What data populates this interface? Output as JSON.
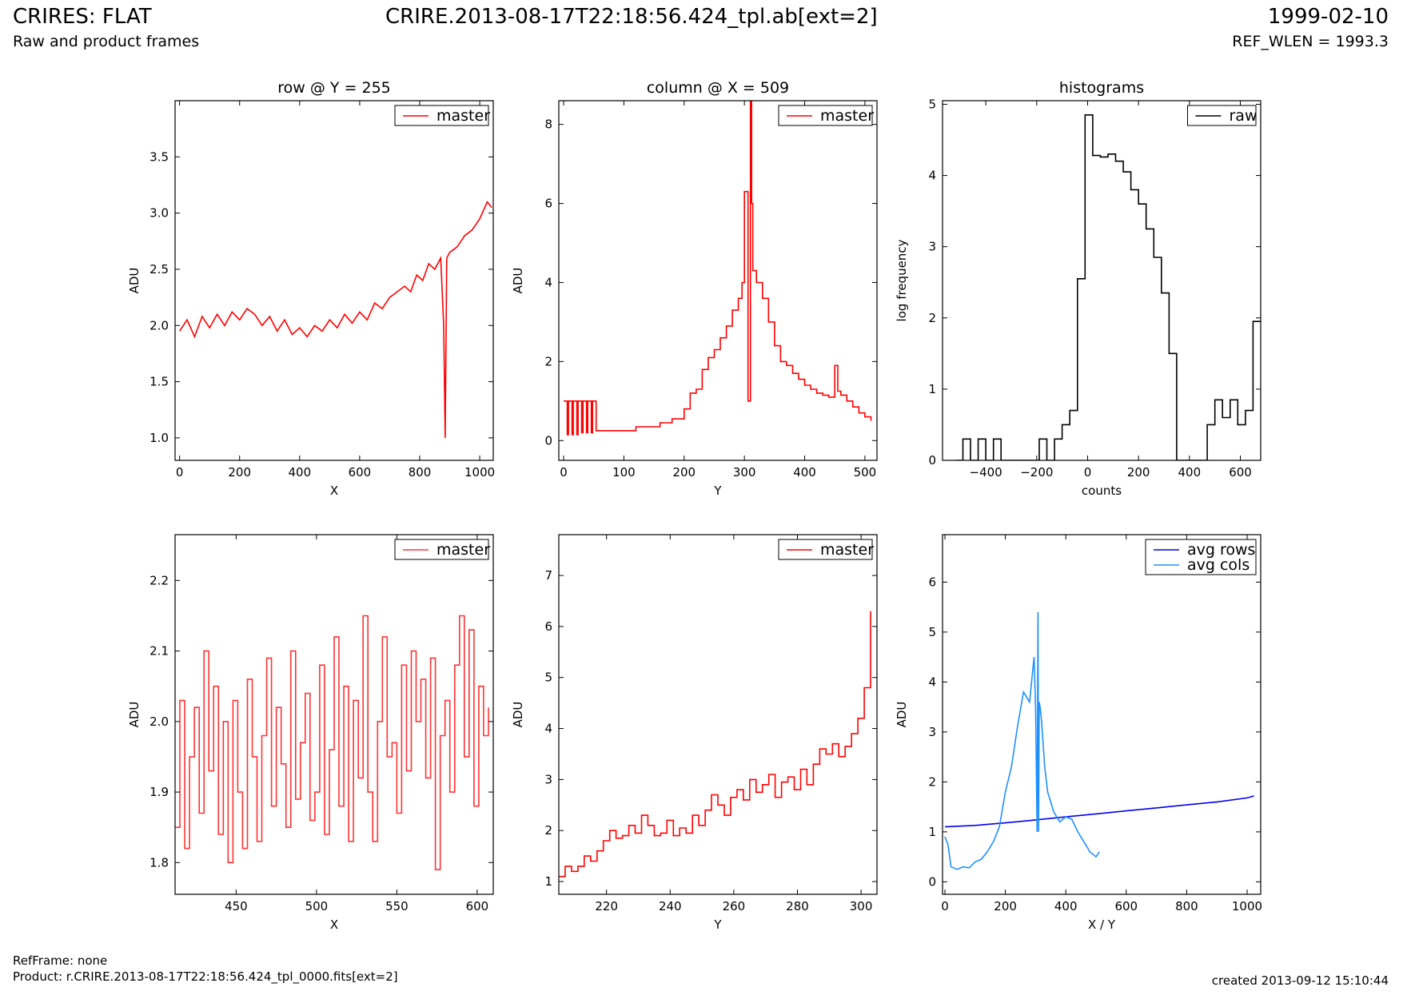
{
  "header": {
    "title": "CRIRES: FLAT",
    "subtitle": "Raw and product frames",
    "file": "CRIRE.2013-08-17T22:18:56.424_tpl.ab[ext=2]",
    "date": "1999-02-10",
    "ref_wlen": "REF_WLEN = 1993.3"
  },
  "footer": {
    "ref_frame": "RefFrame: none",
    "product": "Product: r.CRIRE.2013-08-17T22:18:56.424_tpl_0000.fits[ext=2]",
    "created": "created 2013-09-12 15:10:44"
  },
  "chart_data": [
    {
      "type": "line",
      "title": "row @ Y = 255",
      "xlabel": "X",
      "ylabel": "ADU",
      "xlim": [
        -15,
        1045
      ],
      "ylim": [
        0.8,
        4.0
      ],
      "xticks": [
        0,
        200,
        400,
        600,
        800,
        1000
      ],
      "yticks": [
        1.0,
        1.5,
        2.0,
        2.5,
        3.0,
        3.5
      ],
      "legend_position": "top-right",
      "series": [
        {
          "name": "master",
          "color": "#ff0000",
          "step": false,
          "x": [
            0,
            25,
            50,
            75,
            100,
            125,
            150,
            175,
            200,
            225,
            250,
            275,
            300,
            325,
            350,
            375,
            400,
            425,
            450,
            475,
            500,
            525,
            550,
            575,
            600,
            625,
            650,
            675,
            700,
            725,
            750,
            770,
            790,
            810,
            830,
            850,
            870,
            880,
            885,
            890,
            900,
            925,
            950,
            975,
            1000,
            1025,
            1040
          ],
          "y": [
            1.95,
            2.05,
            1.9,
            2.08,
            1.98,
            2.1,
            2.0,
            2.12,
            2.05,
            2.15,
            2.1,
            2.0,
            2.08,
            1.95,
            2.05,
            1.92,
            1.98,
            1.9,
            2.0,
            1.95,
            2.05,
            1.98,
            2.1,
            2.02,
            2.12,
            2.05,
            2.2,
            2.15,
            2.25,
            2.3,
            2.35,
            2.3,
            2.45,
            2.4,
            2.55,
            2.5,
            2.6,
            2.0,
            1.0,
            2.6,
            2.65,
            2.7,
            2.8,
            2.85,
            2.95,
            3.1,
            3.05
          ]
        }
      ]
    },
    {
      "type": "line",
      "title": "column @ X = 509",
      "xlabel": "Y",
      "ylabel": "ADU",
      "xlim": [
        -8,
        520
      ],
      "ylim": [
        -0.5,
        8.6
      ],
      "xticks": [
        0,
        100,
        200,
        300,
        400,
        500
      ],
      "yticks": [
        0,
        2,
        4,
        6,
        8
      ],
      "legend_position": "top-right",
      "series": [
        {
          "name": "master",
          "color": "#ff0000",
          "step": true,
          "x": [
            0,
            6,
            8,
            14,
            16,
            22,
            24,
            30,
            32,
            38,
            40,
            46,
            48,
            54,
            56,
            80,
            120,
            160,
            180,
            200,
            210,
            220,
            230,
            240,
            250,
            260,
            270,
            280,
            290,
            296,
            300,
            306,
            310,
            312,
            314,
            320,
            330,
            340,
            350,
            360,
            370,
            380,
            390,
            400,
            410,
            420,
            430,
            440,
            450,
            455,
            460,
            470,
            480,
            490,
            500,
            510
          ],
          "y": [
            1.0,
            0.15,
            1.0,
            0.15,
            1.0,
            0.15,
            1.0,
            0.2,
            1.0,
            0.2,
            1.0,
            0.2,
            1.0,
            0.25,
            0.25,
            0.25,
            0.35,
            0.45,
            0.55,
            0.8,
            1.2,
            1.3,
            1.8,
            2.1,
            2.3,
            2.6,
            2.9,
            3.3,
            3.6,
            4.0,
            6.3,
            1.0,
            8.6,
            6.0,
            4.3,
            4.0,
            3.6,
            3.0,
            2.4,
            2.0,
            1.9,
            1.7,
            1.55,
            1.4,
            1.3,
            1.2,
            1.15,
            1.1,
            1.9,
            1.25,
            1.15,
            1.0,
            0.85,
            0.7,
            0.6,
            0.5
          ]
        }
      ]
    },
    {
      "type": "line",
      "title": "histograms",
      "xlabel": "counts",
      "ylabel": "log frequency",
      "xlim": [
        -570,
        680
      ],
      "ylim": [
        0,
        5.05
      ],
      "xticks": [
        -400,
        -200,
        0,
        200,
        400,
        600
      ],
      "yticks": [
        0,
        1,
        2,
        3,
        4,
        5
      ],
      "legend_position": "top-right",
      "series": [
        {
          "name": "raw",
          "color": "#000000",
          "step": true,
          "x": [
            -520,
            -490,
            -460,
            -430,
            -400,
            -370,
            -340,
            -310,
            -280,
            -250,
            -220,
            -190,
            -160,
            -130,
            -100,
            -70,
            -40,
            -10,
            20,
            50,
            80,
            110,
            140,
            170,
            200,
            230,
            260,
            290,
            320,
            350,
            380,
            410,
            440,
            470,
            500,
            530,
            560,
            590,
            620,
            650,
            680
          ],
          "y": [
            0,
            0.3,
            0,
            0.3,
            0,
            0.3,
            0,
            0,
            0,
            0,
            0,
            0.3,
            0,
            0.3,
            0.5,
            0.7,
            2.55,
            4.85,
            4.28,
            4.26,
            4.3,
            4.2,
            4.05,
            3.8,
            3.6,
            3.25,
            2.85,
            2.35,
            1.5,
            0,
            0,
            0,
            0,
            0.5,
            0.85,
            0.6,
            0.85,
            0.5,
            0.7,
            1.95,
            1.95
          ]
        }
      ]
    },
    {
      "type": "line",
      "title": "",
      "xlabel": "X",
      "ylabel": "ADU",
      "xlim": [
        412,
        610
      ],
      "ylim": [
        1.755,
        2.265
      ],
      "xticks": [
        450,
        500,
        550,
        600
      ],
      "yticks": [
        1.8,
        1.9,
        2.0,
        2.1,
        2.2
      ],
      "legend_position": "top-right",
      "series": [
        {
          "name": "master",
          "color": "#ff3333",
          "step": true,
          "x": [
            412,
            415,
            418,
            421,
            424,
            427,
            430,
            433,
            436,
            439,
            442,
            445,
            448,
            451,
            454,
            457,
            460,
            463,
            466,
            469,
            472,
            475,
            478,
            481,
            484,
            487,
            490,
            493,
            496,
            499,
            502,
            505,
            508,
            511,
            514,
            517,
            520,
            523,
            526,
            529,
            532,
            535,
            538,
            541,
            544,
            547,
            550,
            553,
            556,
            559,
            562,
            565,
            568,
            571,
            574,
            577,
            580,
            583,
            586,
            589,
            592,
            595,
            598,
            601,
            604,
            607
          ],
          "y": [
            1.85,
            2.03,
            1.82,
            1.95,
            2.02,
            1.87,
            2.1,
            1.93,
            2.05,
            1.84,
            2.0,
            1.8,
            2.03,
            1.9,
            1.82,
            2.06,
            1.95,
            1.83,
            1.98,
            2.09,
            1.88,
            2.02,
            1.94,
            1.85,
            2.1,
            1.89,
            1.97,
            2.04,
            1.86,
            1.9,
            2.08,
            1.84,
            1.96,
            2.12,
            1.88,
            2.05,
            1.83,
            2.03,
            1.92,
            2.15,
            1.9,
            1.83,
            2.0,
            2.12,
            1.95,
            1.97,
            1.87,
            2.08,
            1.93,
            2.1,
            2.0,
            2.06,
            1.92,
            2.09,
            1.79,
            1.98,
            2.03,
            1.9,
            2.08,
            2.15,
            1.95,
            2.13,
            1.88,
            2.05,
            1.98,
            2.02
          ]
        }
      ]
    },
    {
      "type": "line",
      "title": "",
      "xlabel": "Y",
      "ylabel": "ADU",
      "xlim": [
        205,
        305
      ],
      "ylim": [
        0.75,
        7.8
      ],
      "xticks": [
        220,
        240,
        260,
        280,
        300
      ],
      "yticks": [
        1,
        2,
        3,
        4,
        5,
        6,
        7
      ],
      "legend_position": "top-right",
      "series": [
        {
          "name": "master",
          "color": "#ff0000",
          "step": true,
          "x": [
            205,
            207,
            209,
            211,
            213,
            215,
            217,
            219,
            221,
            223,
            225,
            227,
            229,
            231,
            233,
            235,
            237,
            239,
            241,
            243,
            245,
            247,
            249,
            251,
            253,
            255,
            257,
            259,
            261,
            263,
            265,
            267,
            269,
            271,
            273,
            275,
            277,
            279,
            281,
            283,
            285,
            287,
            289,
            291,
            293,
            295,
            297,
            299,
            301,
            303
          ],
          "y": [
            1.1,
            1.3,
            1.2,
            1.3,
            1.5,
            1.4,
            1.6,
            1.8,
            2.0,
            1.85,
            1.9,
            2.1,
            1.95,
            2.3,
            2.1,
            1.9,
            1.95,
            2.2,
            1.9,
            2.05,
            1.95,
            2.3,
            2.1,
            2.4,
            2.7,
            2.5,
            2.3,
            2.65,
            2.8,
            2.6,
            3.0,
            2.75,
            2.9,
            3.1,
            2.65,
            2.95,
            3.05,
            2.8,
            3.2,
            2.9,
            3.3,
            3.6,
            3.5,
            3.7,
            3.45,
            3.65,
            3.9,
            4.2,
            4.8,
            6.3
          ]
        }
      ]
    },
    {
      "type": "line",
      "title": "",
      "xlabel": "X / Y",
      "ylabel": "ADU",
      "xlim": [
        -8,
        1045
      ],
      "ylim": [
        -0.25,
        6.95
      ],
      "xticks": [
        0,
        200,
        400,
        600,
        800,
        1000
      ],
      "yticks": [
        0,
        1,
        2,
        3,
        4,
        5,
        6
      ],
      "legend_position": "top-right",
      "series": [
        {
          "name": "avg rows",
          "color": "#0000ee",
          "step": false,
          "x": [
            0,
            100,
            200,
            300,
            400,
            500,
            600,
            700,
            800,
            900,
            1000,
            1023
          ],
          "y": [
            1.1,
            1.13,
            1.18,
            1.24,
            1.3,
            1.36,
            1.42,
            1.48,
            1.54,
            1.6,
            1.68,
            1.72
          ]
        },
        {
          "name": "avg cols",
          "color": "#1e90ff",
          "step": false,
          "x": [
            0,
            10,
            20,
            40,
            60,
            80,
            100,
            120,
            140,
            160,
            180,
            200,
            220,
            240,
            260,
            280,
            295,
            300,
            305,
            308,
            310,
            312,
            315,
            320,
            330,
            340,
            360,
            380,
            400,
            420,
            440,
            460,
            480,
            500,
            511
          ],
          "y": [
            0.9,
            0.75,
            0.3,
            0.25,
            0.3,
            0.28,
            0.4,
            0.45,
            0.6,
            0.8,
            1.1,
            1.8,
            2.3,
            3.1,
            3.8,
            3.6,
            4.5,
            3.5,
            1.0,
            5.4,
            1.0,
            3.6,
            3.5,
            3.2,
            2.3,
            1.8,
            1.4,
            1.2,
            1.3,
            1.25,
            1.0,
            0.8,
            0.6,
            0.5,
            0.6
          ]
        }
      ]
    }
  ]
}
